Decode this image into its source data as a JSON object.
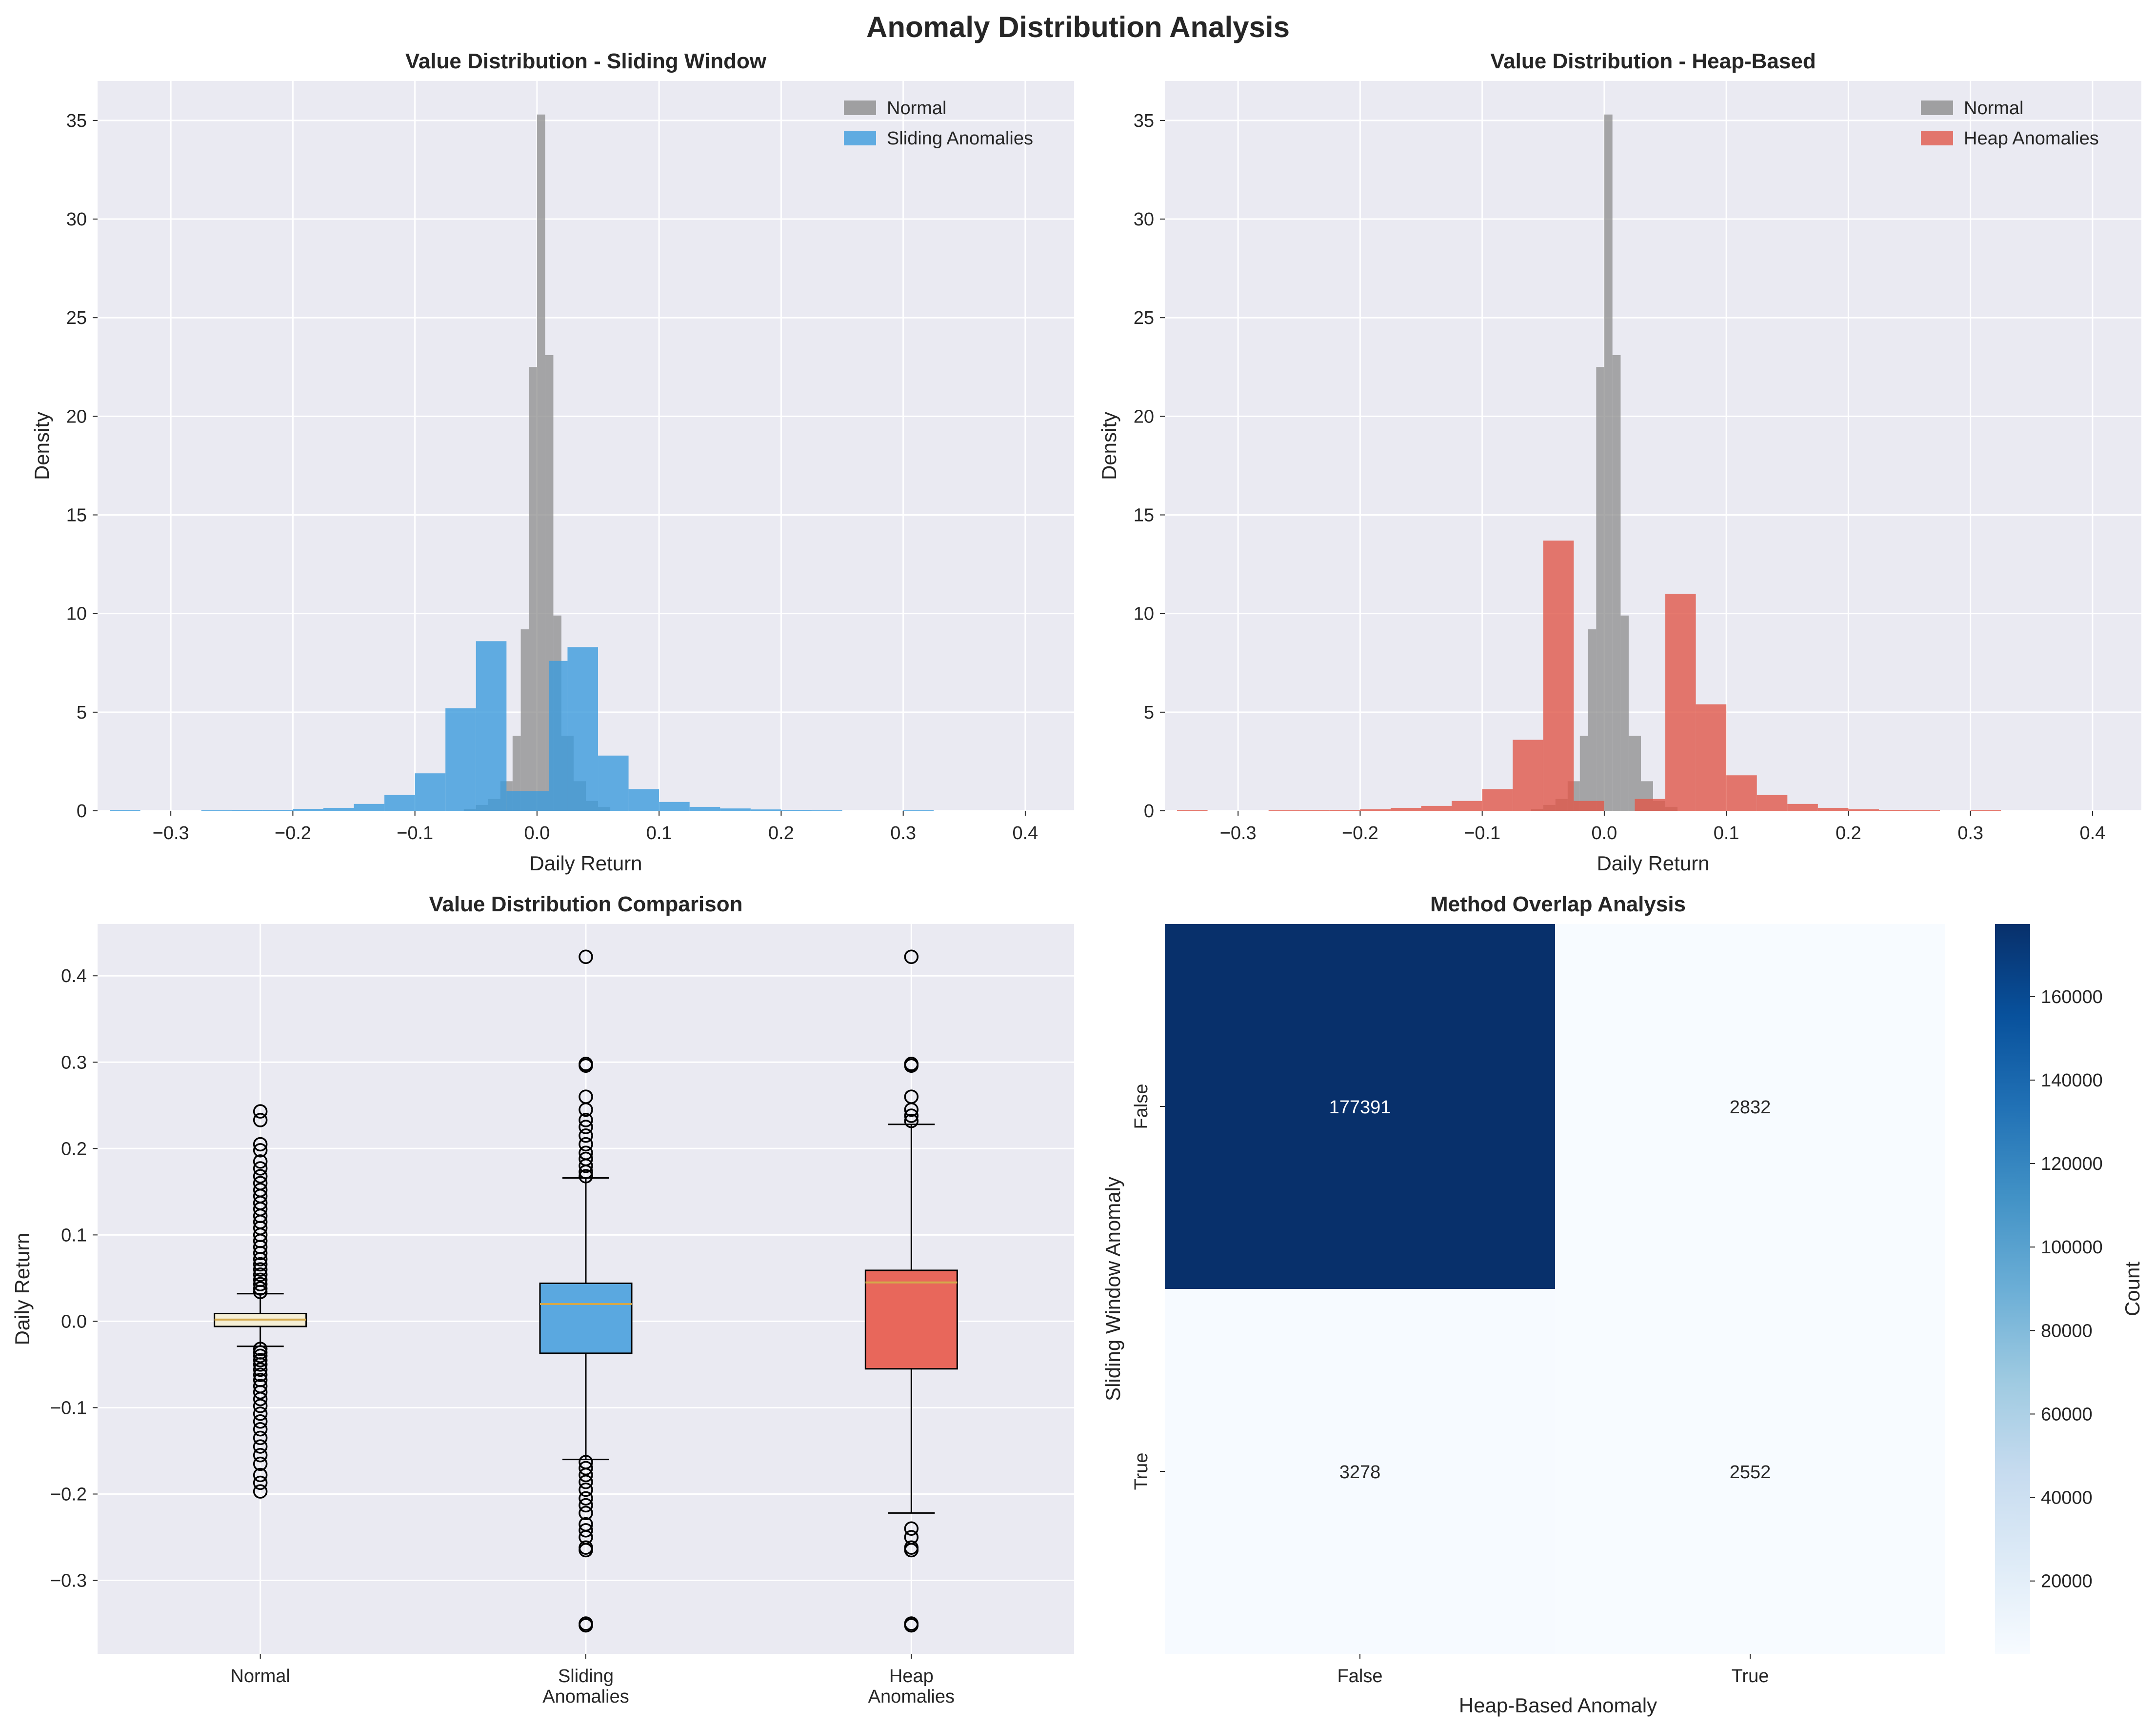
{
  "figure": {
    "title": "Anomaly Distribution Analysis"
  },
  "colors": {
    "panel_bg": "#EAEAF2",
    "normal": "#8C8C8C",
    "sliding": "#3C9BDC",
    "heap": "#E0574A",
    "box_normal": "#F5EFD6",
    "median": "#D4A84B"
  },
  "chart_data": [
    {
      "type": "bar",
      "title": "Value Distribution - Sliding Window",
      "xlabel": "Daily Return",
      "ylabel": "Density",
      "xlim": [
        -0.36,
        0.44
      ],
      "ylim": [
        0,
        37
      ],
      "xticks": [
        -0.3,
        -0.2,
        -0.1,
        0.0,
        0.1,
        0.2,
        0.3,
        0.4
      ],
      "xtick_labels": [
        "−0.3",
        "−0.2",
        "−0.1",
        "0.0",
        "0.1",
        "0.2",
        "0.3",
        "0.4"
      ],
      "yticks": [
        0,
        5,
        10,
        15,
        20,
        25,
        30,
        35
      ],
      "legend_position": "top-right",
      "grid": true,
      "series": [
        {
          "name": "Normal",
          "color": "#8C8C8C",
          "bins": [
            {
              "x0": -0.06,
              "x1": -0.05,
              "y": 0.1
            },
            {
              "x0": -0.05,
              "x1": -0.04,
              "y": 0.3
            },
            {
              "x0": -0.04,
              "x1": -0.03,
              "y": 0.6
            },
            {
              "x0": -0.03,
              "x1": -0.02,
              "y": 1.5
            },
            {
              "x0": -0.02,
              "x1": -0.0133,
              "y": 3.8
            },
            {
              "x0": -0.0133,
              "x1": -0.0066,
              "y": 9.2
            },
            {
              "x0": -0.0066,
              "x1": 0.0,
              "y": 22.5
            },
            {
              "x0": 0.0,
              "x1": 0.0067,
              "y": 35.3
            },
            {
              "x0": 0.0067,
              "x1": 0.0134,
              "y": 23.1
            },
            {
              "x0": 0.0134,
              "x1": 0.02,
              "y": 9.9
            },
            {
              "x0": 0.02,
              "x1": 0.03,
              "y": 3.8
            },
            {
              "x0": 0.03,
              "x1": 0.04,
              "y": 1.5
            },
            {
              "x0": 0.04,
              "x1": 0.05,
              "y": 0.5
            },
            {
              "x0": 0.05,
              "x1": 0.06,
              "y": 0.2
            }
          ]
        },
        {
          "name": "Sliding Anomalies",
          "color": "#3C9BDC",
          "bins": [
            {
              "x0": -0.35,
              "x1": -0.325,
              "y": 0.04
            },
            {
              "x0": -0.275,
              "x1": -0.25,
              "y": 0.03
            },
            {
              "x0": -0.25,
              "x1": -0.225,
              "y": 0.05
            },
            {
              "x0": -0.225,
              "x1": -0.2,
              "y": 0.05
            },
            {
              "x0": -0.2,
              "x1": -0.175,
              "y": 0.1
            },
            {
              "x0": -0.175,
              "x1": -0.15,
              "y": 0.15
            },
            {
              "x0": -0.15,
              "x1": -0.125,
              "y": 0.35
            },
            {
              "x0": -0.125,
              "x1": -0.1,
              "y": 0.8
            },
            {
              "x0": -0.1,
              "x1": -0.075,
              "y": 1.9
            },
            {
              "x0": -0.075,
              "x1": -0.05,
              "y": 5.2
            },
            {
              "x0": -0.05,
              "x1": -0.025,
              "y": 8.6
            },
            {
              "x0": -0.025,
              "x1": 0.0,
              "y": 1.0
            },
            {
              "x0": 0.0,
              "x1": 0.01,
              "y": 1.0
            },
            {
              "x0": 0.01,
              "x1": 0.025,
              "y": 7.6
            },
            {
              "x0": 0.025,
              "x1": 0.05,
              "y": 8.3
            },
            {
              "x0": 0.05,
              "x1": 0.075,
              "y": 2.8
            },
            {
              "x0": 0.075,
              "x1": 0.1,
              "y": 1.1
            },
            {
              "x0": 0.1,
              "x1": 0.125,
              "y": 0.45
            },
            {
              "x0": 0.125,
              "x1": 0.15,
              "y": 0.2
            },
            {
              "x0": 0.15,
              "x1": 0.175,
              "y": 0.12
            },
            {
              "x0": 0.175,
              "x1": 0.2,
              "y": 0.07
            },
            {
              "x0": 0.2,
              "x1": 0.225,
              "y": 0.05
            },
            {
              "x0": 0.225,
              "x1": 0.25,
              "y": 0.03
            },
            {
              "x0": 0.3,
              "x1": 0.325,
              "y": 0.03
            }
          ]
        }
      ]
    },
    {
      "type": "bar",
      "title": "Value Distribution - Heap-Based",
      "xlabel": "Daily Return",
      "ylabel": "Density",
      "xlim": [
        -0.36,
        0.44
      ],
      "ylim": [
        0,
        37
      ],
      "xticks": [
        -0.3,
        -0.2,
        -0.1,
        0.0,
        0.1,
        0.2,
        0.3,
        0.4
      ],
      "xtick_labels": [
        "−0.3",
        "−0.2",
        "−0.1",
        "0.0",
        "0.1",
        "0.2",
        "0.3",
        "0.4"
      ],
      "yticks": [
        0,
        5,
        10,
        15,
        20,
        25,
        30,
        35
      ],
      "legend_position": "top-right",
      "grid": true,
      "series": [
        {
          "name": "Normal",
          "color": "#8C8C8C",
          "bins": [
            {
              "x0": -0.06,
              "x1": -0.05,
              "y": 0.1
            },
            {
              "x0": -0.05,
              "x1": -0.04,
              "y": 0.3
            },
            {
              "x0": -0.04,
              "x1": -0.03,
              "y": 0.6
            },
            {
              "x0": -0.03,
              "x1": -0.02,
              "y": 1.5
            },
            {
              "x0": -0.02,
              "x1": -0.0133,
              "y": 3.8
            },
            {
              "x0": -0.0133,
              "x1": -0.0066,
              "y": 9.2
            },
            {
              "x0": -0.0066,
              "x1": 0.0,
              "y": 22.5
            },
            {
              "x0": 0.0,
              "x1": 0.0067,
              "y": 35.3
            },
            {
              "x0": 0.0067,
              "x1": 0.0134,
              "y": 23.1
            },
            {
              "x0": 0.0134,
              "x1": 0.02,
              "y": 9.9
            },
            {
              "x0": 0.02,
              "x1": 0.03,
              "y": 3.8
            },
            {
              "x0": 0.03,
              "x1": 0.04,
              "y": 1.5
            },
            {
              "x0": 0.04,
              "x1": 0.05,
              "y": 0.5
            },
            {
              "x0": 0.05,
              "x1": 0.06,
              "y": 0.2
            }
          ]
        },
        {
          "name": "Heap Anomalies",
          "color": "#E0574A",
          "bins": [
            {
              "x0": -0.35,
              "x1": -0.325,
              "y": 0.04
            },
            {
              "x0": -0.275,
              "x1": -0.25,
              "y": 0.03
            },
            {
              "x0": -0.25,
              "x1": -0.225,
              "y": 0.04
            },
            {
              "x0": -0.225,
              "x1": -0.2,
              "y": 0.05
            },
            {
              "x0": -0.2,
              "x1": -0.175,
              "y": 0.08
            },
            {
              "x0": -0.175,
              "x1": -0.15,
              "y": 0.15
            },
            {
              "x0": -0.15,
              "x1": -0.125,
              "y": 0.25
            },
            {
              "x0": -0.125,
              "x1": -0.1,
              "y": 0.5
            },
            {
              "x0": -0.1,
              "x1": -0.075,
              "y": 1.1
            },
            {
              "x0": -0.075,
              "x1": -0.05,
              "y": 3.6
            },
            {
              "x0": -0.05,
              "x1": -0.025,
              "y": 13.7
            },
            {
              "x0": -0.025,
              "x1": -0.0,
              "y": 0.5
            },
            {
              "x0": 0.025,
              "x1": 0.05,
              "y": 0.6
            },
            {
              "x0": 0.05,
              "x1": 0.075,
              "y": 11.0
            },
            {
              "x0": 0.075,
              "x1": 0.1,
              "y": 5.4
            },
            {
              "x0": 0.1,
              "x1": 0.125,
              "y": 1.8
            },
            {
              "x0": 0.125,
              "x1": 0.15,
              "y": 0.8
            },
            {
              "x0": 0.15,
              "x1": 0.175,
              "y": 0.35
            },
            {
              "x0": 0.175,
              "x1": 0.2,
              "y": 0.15
            },
            {
              "x0": 0.2,
              "x1": 0.225,
              "y": 0.08
            },
            {
              "x0": 0.225,
              "x1": 0.25,
              "y": 0.05
            },
            {
              "x0": 0.25,
              "x1": 0.275,
              "y": 0.04
            },
            {
              "x0": 0.3,
              "x1": 0.325,
              "y": 0.04
            }
          ]
        }
      ]
    },
    {
      "type": "box",
      "title": "Value Distribution Comparison",
      "ylabel": "Daily Return",
      "ylim": [
        -0.385,
        0.46
      ],
      "yticks": [
        -0.3,
        -0.2,
        -0.1,
        0.0,
        0.1,
        0.2,
        0.3,
        0.4
      ],
      "ytick_labels": [
        "−0.3",
        "−0.2",
        "−0.1",
        "0.0",
        "0.1",
        "0.2",
        "0.3",
        "0.4"
      ],
      "grid": true,
      "boxes": [
        {
          "label": [
            "Normal"
          ],
          "fill": "#F5EFD6",
          "q1": -0.006,
          "median": 0.002,
          "q3": 0.009,
          "whisker_low": -0.029,
          "whisker_high": 0.032,
          "outliers": [
            0.243,
            0.233,
            0.205,
            0.198,
            0.185,
            0.177,
            0.168,
            0.16,
            0.152,
            0.145,
            0.137,
            0.13,
            0.122,
            0.115,
            0.108,
            0.1,
            0.093,
            0.086,
            0.079,
            0.072,
            0.066,
            0.06,
            0.054,
            0.048,
            0.043,
            0.038,
            0.034,
            -0.032,
            -0.036,
            -0.04,
            -0.045,
            -0.05,
            -0.056,
            -0.062,
            -0.068,
            -0.075,
            -0.082,
            -0.09,
            -0.098,
            -0.107,
            -0.116,
            -0.125,
            -0.135,
            -0.145,
            -0.155,
            -0.165,
            -0.178,
            -0.187,
            -0.197
          ]
        },
        {
          "label": [
            "Sliding",
            "Anomalies"
          ],
          "fill": "#5AA8E0",
          "q1": -0.037,
          "median": 0.02,
          "q3": 0.044,
          "whisker_low": -0.16,
          "whisker_high": 0.166,
          "outliers": [
            0.422,
            0.298,
            0.296,
            0.26,
            0.245,
            0.233,
            0.225,
            0.215,
            0.205,
            0.195,
            0.188,
            0.18,
            0.173,
            0.168,
            -0.163,
            -0.17,
            -0.178,
            -0.186,
            -0.195,
            -0.205,
            -0.213,
            -0.222,
            -0.235,
            -0.242,
            -0.25,
            -0.262,
            -0.265,
            -0.35,
            -0.352
          ]
        },
        {
          "label": [
            "Heap",
            "Anomalies"
          ],
          "fill": "#E8675B",
          "q1": -0.055,
          "median": 0.045,
          "q3": 0.059,
          "whisker_low": -0.222,
          "whisker_high": 0.228,
          "outliers": [
            0.422,
            0.298,
            0.296,
            0.26,
            0.245,
            0.238,
            0.232,
            -0.24,
            -0.25,
            -0.262,
            -0.265,
            -0.35,
            -0.352
          ]
        }
      ]
    },
    {
      "type": "heatmap",
      "title": "Method Overlap Analysis",
      "xlabel": "Heap-Based Anomaly",
      "ylabel": "Sliding Window Anomaly",
      "x_categories": [
        "False",
        "True"
      ],
      "y_categories": [
        "False",
        "True"
      ],
      "values": [
        [
          177391,
          2832
        ],
        [
          3278,
          2552
        ]
      ],
      "colorbar": {
        "label": "Count",
        "ticks": [
          20000,
          40000,
          60000,
          80000,
          100000,
          120000,
          140000,
          160000
        ],
        "min": 2552,
        "max": 177391
      }
    }
  ]
}
